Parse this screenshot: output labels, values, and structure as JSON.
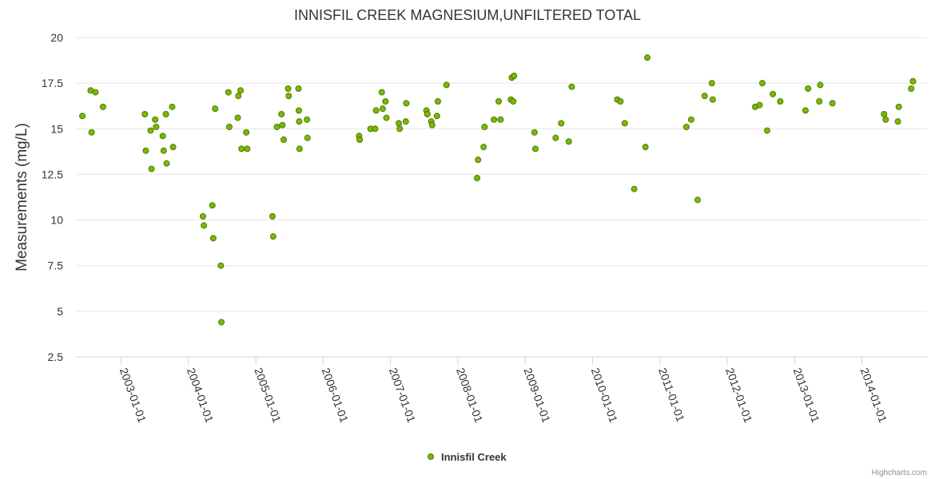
{
  "chart_data": {
    "type": "scatter",
    "title": "INNISFIL CREEK MAGNESIUM,UNFILTERED TOTAL",
    "ylabel": "Measurements (mg/L)",
    "xlabel": "",
    "ylim": [
      2.5,
      20
    ],
    "xlim": [
      "2002-05-01",
      "2014-12-20"
    ],
    "y_ticks": [
      "2.5",
      "5",
      "7.5",
      "10",
      "12.5",
      "15",
      "17.5",
      "20"
    ],
    "x_ticks": [
      "2003-01-01",
      "2004-01-01",
      "2005-01-01",
      "2006-01-01",
      "2007-01-01",
      "2008-01-01",
      "2009-01-01",
      "2010-01-01",
      "2011-01-01",
      "2012-01-01",
      "2013-01-01",
      "2014-01-01"
    ],
    "grid": true,
    "legend_position": "bottom-center",
    "series": [
      {
        "name": "Innisfil Creek",
        "color": "#7cb900",
        "marker_stroke": "#4d7a00",
        "points": [
          [
            "2002-06-05",
            15.7
          ],
          [
            "2002-07-20",
            17.1
          ],
          [
            "2002-07-25",
            14.8
          ],
          [
            "2002-08-15",
            17.0
          ],
          [
            "2002-09-25",
            16.2
          ],
          [
            "2003-05-10",
            15.8
          ],
          [
            "2003-05-15",
            13.8
          ],
          [
            "2003-06-10",
            14.9
          ],
          [
            "2003-06-15",
            12.8
          ],
          [
            "2003-07-05",
            15.5
          ],
          [
            "2003-07-10",
            15.1
          ],
          [
            "2003-08-15",
            14.6
          ],
          [
            "2003-08-20",
            13.8
          ],
          [
            "2003-09-01",
            15.8
          ],
          [
            "2003-09-05",
            13.1
          ],
          [
            "2003-10-05",
            16.2
          ],
          [
            "2003-10-10",
            14.0
          ],
          [
            "2004-03-20",
            10.2
          ],
          [
            "2004-03-25",
            9.7
          ],
          [
            "2004-05-10",
            10.8
          ],
          [
            "2004-05-15",
            9.0
          ],
          [
            "2004-05-25",
            16.1
          ],
          [
            "2004-06-25",
            7.5
          ],
          [
            "2004-06-28",
            4.4
          ],
          [
            "2004-08-05",
            17.0
          ],
          [
            "2004-08-10",
            15.1
          ],
          [
            "2004-09-25",
            15.6
          ],
          [
            "2004-09-28",
            16.8
          ],
          [
            "2004-10-10",
            17.1
          ],
          [
            "2004-10-15",
            13.9
          ],
          [
            "2004-11-10",
            14.8
          ],
          [
            "2004-11-15",
            13.9
          ],
          [
            "2005-04-01",
            10.2
          ],
          [
            "2005-04-05",
            9.1
          ],
          [
            "2005-04-25",
            15.1
          ],
          [
            "2005-05-20",
            15.8
          ],
          [
            "2005-05-25",
            15.2
          ],
          [
            "2005-06-01",
            14.4
          ],
          [
            "2005-06-25",
            17.2
          ],
          [
            "2005-06-28",
            16.8
          ],
          [
            "2005-08-20",
            17.2
          ],
          [
            "2005-08-22",
            16.0
          ],
          [
            "2005-08-24",
            15.4
          ],
          [
            "2005-08-26",
            13.9
          ],
          [
            "2005-10-05",
            15.5
          ],
          [
            "2005-10-08",
            14.5
          ],
          [
            "2006-07-15",
            14.6
          ],
          [
            "2006-07-18",
            14.4
          ],
          [
            "2006-09-15",
            15.0
          ],
          [
            "2006-10-10",
            15.0
          ],
          [
            "2006-10-15",
            16.0
          ],
          [
            "2006-11-15",
            17.0
          ],
          [
            "2006-11-20",
            16.1
          ],
          [
            "2006-12-05",
            16.5
          ],
          [
            "2006-12-10",
            15.6
          ],
          [
            "2007-02-15",
            15.3
          ],
          [
            "2007-02-20",
            15.0
          ],
          [
            "2007-03-25",
            15.4
          ],
          [
            "2007-03-28",
            16.4
          ],
          [
            "2007-07-15",
            16.0
          ],
          [
            "2007-07-20",
            15.8
          ],
          [
            "2007-08-10",
            15.4
          ],
          [
            "2007-08-15",
            15.2
          ],
          [
            "2007-09-10",
            15.7
          ],
          [
            "2007-09-15",
            16.5
          ],
          [
            "2007-11-01",
            17.4
          ],
          [
            "2008-04-15",
            12.3
          ],
          [
            "2008-04-20",
            13.3
          ],
          [
            "2008-05-20",
            14.0
          ],
          [
            "2008-05-25",
            15.1
          ],
          [
            "2008-07-15",
            15.5
          ],
          [
            "2008-08-10",
            16.5
          ],
          [
            "2008-08-20",
            15.5
          ],
          [
            "2008-10-15",
            16.6
          ],
          [
            "2008-10-20",
            17.8
          ],
          [
            "2008-10-28",
            16.5
          ],
          [
            "2008-11-01",
            17.9
          ],
          [
            "2009-02-20",
            14.8
          ],
          [
            "2009-02-25",
            13.9
          ],
          [
            "2009-06-15",
            14.5
          ],
          [
            "2009-07-15",
            15.3
          ],
          [
            "2009-08-25",
            14.3
          ],
          [
            "2009-09-10",
            17.3
          ],
          [
            "2010-05-15",
            16.6
          ],
          [
            "2010-06-01",
            16.5
          ],
          [
            "2010-06-25",
            15.3
          ],
          [
            "2010-08-15",
            11.7
          ],
          [
            "2010-10-15",
            14.0
          ],
          [
            "2010-10-25",
            18.9
          ],
          [
            "2011-05-25",
            15.1
          ],
          [
            "2011-06-20",
            15.5
          ],
          [
            "2011-07-25",
            11.1
          ],
          [
            "2011-09-01",
            16.8
          ],
          [
            "2011-10-10",
            17.5
          ],
          [
            "2011-10-15",
            16.6
          ],
          [
            "2012-06-01",
            16.2
          ],
          [
            "2012-06-25",
            16.3
          ],
          [
            "2012-07-10",
            17.5
          ],
          [
            "2012-08-05",
            14.9
          ],
          [
            "2012-09-05",
            16.9
          ],
          [
            "2012-10-15",
            16.5
          ],
          [
            "2013-03-01",
            16.0
          ],
          [
            "2013-03-15",
            17.2
          ],
          [
            "2013-05-15",
            16.5
          ],
          [
            "2013-05-20",
            17.4
          ],
          [
            "2013-07-25",
            16.4
          ],
          [
            "2014-05-01",
            15.8
          ],
          [
            "2014-05-10",
            15.5
          ],
          [
            "2014-07-15",
            15.4
          ],
          [
            "2014-07-20",
            16.2
          ],
          [
            "2014-09-25",
            17.2
          ],
          [
            "2014-10-05",
            17.6
          ]
        ]
      }
    ]
  },
  "credits": "Highcharts.com"
}
